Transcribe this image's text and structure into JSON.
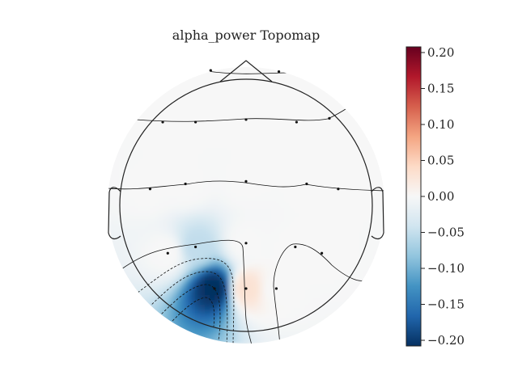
{
  "chart_data": {
    "type": "heatmap",
    "subtype": "eeg-topomap",
    "title": "alpha_power Topomap",
    "colormap": "RdBu_r",
    "vlim": [
      -0.2,
      0.2
    ],
    "colorbar_ticks": [
      "0.20",
      "0.15",
      "0.10",
      "0.05",
      "0.00",
      "−0.05",
      "−0.10",
      "−0.15",
      "−0.20"
    ],
    "colorbar_tick_values": [
      0.2,
      0.15,
      0.1,
      0.05,
      0.0,
      -0.05,
      -0.1,
      -0.15,
      -0.2
    ],
    "sensors": [
      {
        "x": -0.28,
        "y": 1.07,
        "v": 0.0
      },
      {
        "x": 0.26,
        "y": 1.06,
        "v": 0.0
      },
      {
        "x": -0.66,
        "y": 0.66,
        "v": 0.0
      },
      {
        "x": -0.4,
        "y": 0.66,
        "v": 0.0
      },
      {
        "x": 0.0,
        "y": 0.68,
        "v": 0.0
      },
      {
        "x": 0.4,
        "y": 0.66,
        "v": 0.0
      },
      {
        "x": 0.66,
        "y": 0.69,
        "v": 0.0
      },
      {
        "x": -0.76,
        "y": 0.13,
        "v": 0.0
      },
      {
        "x": -0.48,
        "y": 0.17,
        "v": 0.0
      },
      {
        "x": 0.0,
        "y": 0.19,
        "v": 0.0
      },
      {
        "x": 0.48,
        "y": 0.17,
        "v": 0.0
      },
      {
        "x": 0.73,
        "y": 0.13,
        "v": 0.0
      },
      {
        "x": -0.62,
        "y": -0.38,
        "v": 0.0
      },
      {
        "x": -0.4,
        "y": -0.33,
        "v": -0.05
      },
      {
        "x": 0.0,
        "y": -0.3,
        "v": 0.0
      },
      {
        "x": 0.39,
        "y": -0.33,
        "v": 0.0
      },
      {
        "x": 0.6,
        "y": -0.38,
        "v": 0.0
      },
      {
        "x": -0.25,
        "y": -0.66,
        "v": -0.2
      },
      {
        "x": 0.0,
        "y": -0.66,
        "v": 0.03
      },
      {
        "x": 0.24,
        "y": -0.66,
        "v": 0.0
      }
    ]
  }
}
